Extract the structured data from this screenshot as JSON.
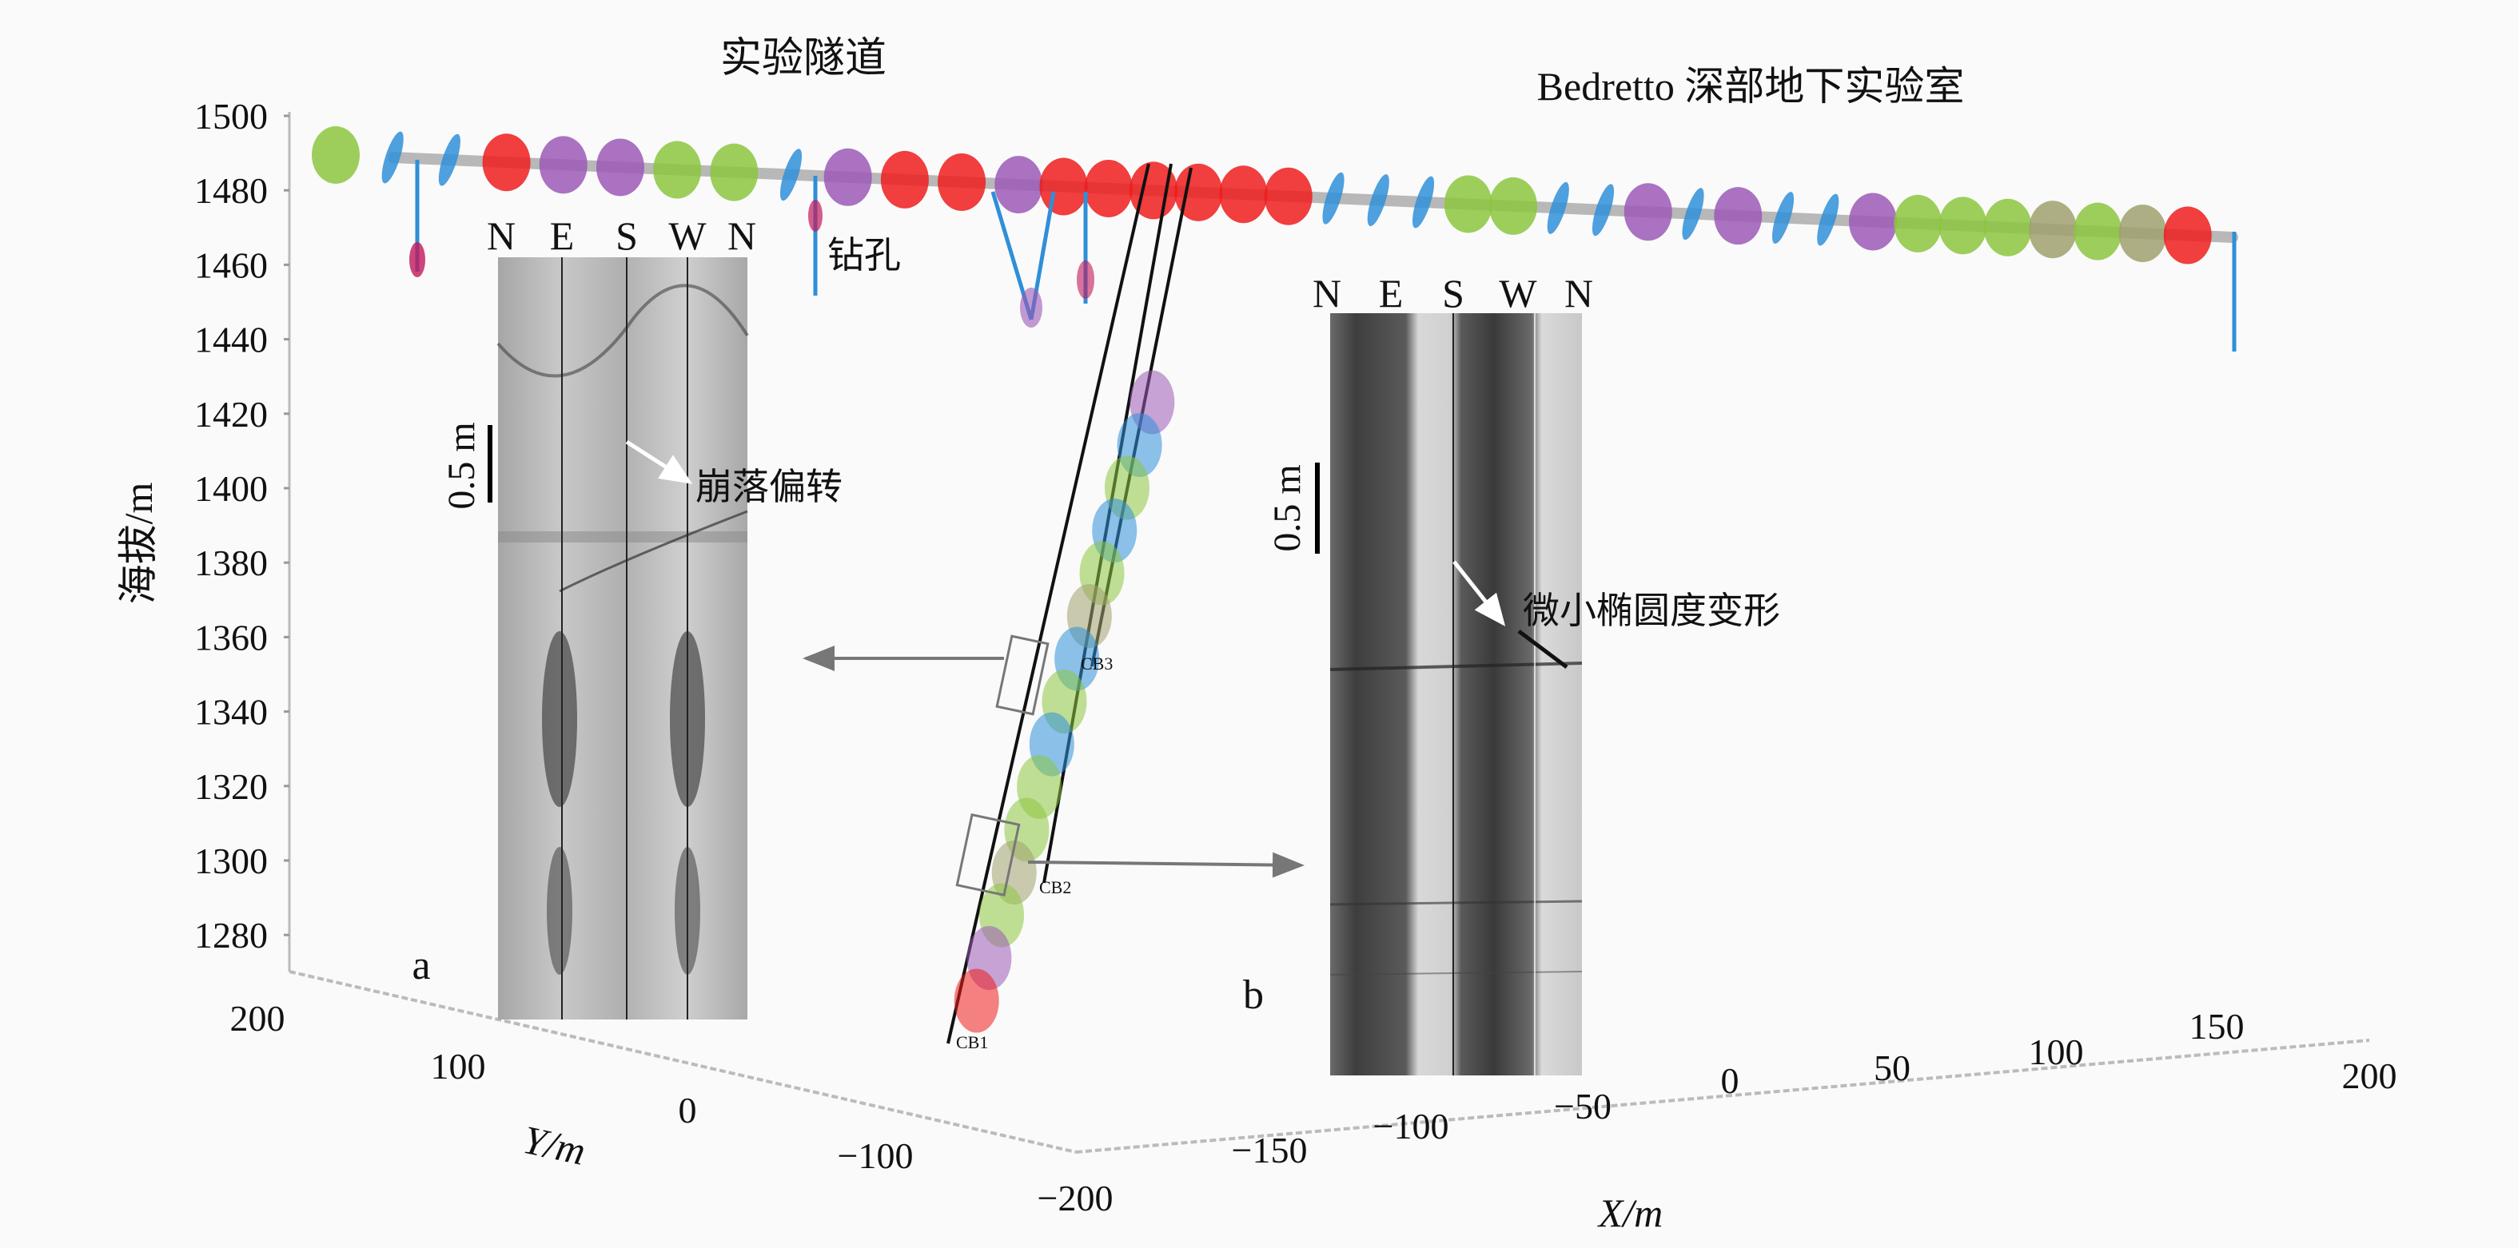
{
  "titles": {
    "tunnel": "实验隧道",
    "lab": "Bedretto 深部地下实验室",
    "borehole": "钻孔"
  },
  "axes": {
    "z_label": "海拔/m",
    "z_ticks": [
      "1500",
      "1480",
      "1460",
      "1440",
      "1420",
      "1400",
      "1380",
      "1360",
      "1340",
      "1320",
      "1300",
      "1280"
    ],
    "y_label": "Y/m",
    "y_ticks": [
      "200",
      "100",
      "0",
      "−100",
      "−200"
    ],
    "x_label": "X/m",
    "x_ticks": [
      "−150",
      "−100",
      "−50",
      "0",
      "50",
      "100",
      "150",
      "200"
    ]
  },
  "boreholes": [
    "CB1",
    "CB2",
    "CB3"
  ],
  "inset_a": {
    "label": "a",
    "headers": [
      "N",
      "E",
      "S",
      "W",
      "N"
    ],
    "scale": "0.5 m",
    "annotation": "崩落偏转"
  },
  "inset_b": {
    "label": "b",
    "headers": [
      "N",
      "E",
      "S",
      "W",
      "N"
    ],
    "scale": "0.5 m",
    "annotation": "微小椭圆度变形"
  },
  "colors": {
    "red": "#ee1c1c",
    "green": "#8cc63f",
    "blue": "#2f8fd8",
    "purple": "#9b59b6",
    "olive": "#a0a070",
    "tunnel": "#b8b8b8"
  },
  "tunnel_ellipses": [
    "green",
    "blue",
    "blue",
    "red",
    "purple",
    "purple",
    "green",
    "green",
    "blue",
    "purple",
    "red",
    "red",
    "purple",
    "red",
    "red",
    "red",
    "red",
    "red",
    "red",
    "blue",
    "blue",
    "blue",
    "green",
    "green",
    "blue",
    "blue",
    "purple",
    "blue",
    "purple",
    "blue",
    "blue",
    "purple",
    "green",
    "green",
    "green",
    "olive",
    "green",
    "olive",
    "red"
  ]
}
